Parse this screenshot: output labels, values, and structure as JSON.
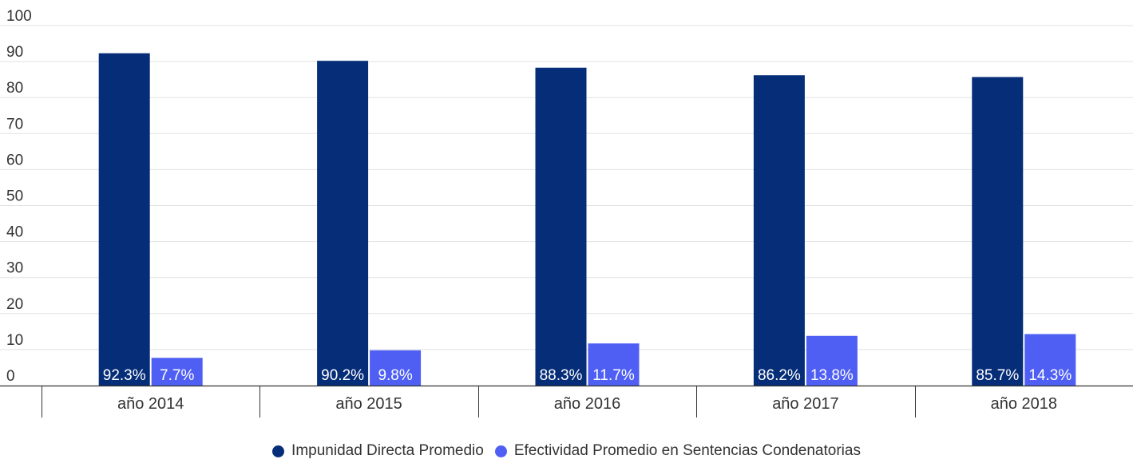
{
  "chart_data": {
    "type": "bar",
    "title": "",
    "xlabel": "",
    "ylabel": "",
    "ylim": [
      0,
      100
    ],
    "yticks": [
      0,
      10,
      20,
      30,
      40,
      50,
      60,
      70,
      80,
      90,
      100
    ],
    "grid": true,
    "legend_position": "bottom",
    "categories": [
      "año 2014",
      "año 2015",
      "año 2016",
      "año 2017",
      "año 2018"
    ],
    "series": [
      {
        "name": "Impunidad Directa Promedio",
        "color": "#062d78",
        "values": [
          92.3,
          90.2,
          88.3,
          86.2,
          85.7
        ],
        "labels": [
          "92.3%",
          "90.2%",
          "88.3%",
          "86.2%",
          "85.7%"
        ]
      },
      {
        "name": "Efectividad Promedio en Sentencias Condenatorias",
        "color": "#4f5ff3",
        "values": [
          7.7,
          9.8,
          11.7,
          13.8,
          14.3
        ],
        "labels": [
          "7.7%",
          "9.8%",
          "11.7%",
          "13.8%",
          "14.3%"
        ]
      }
    ]
  }
}
